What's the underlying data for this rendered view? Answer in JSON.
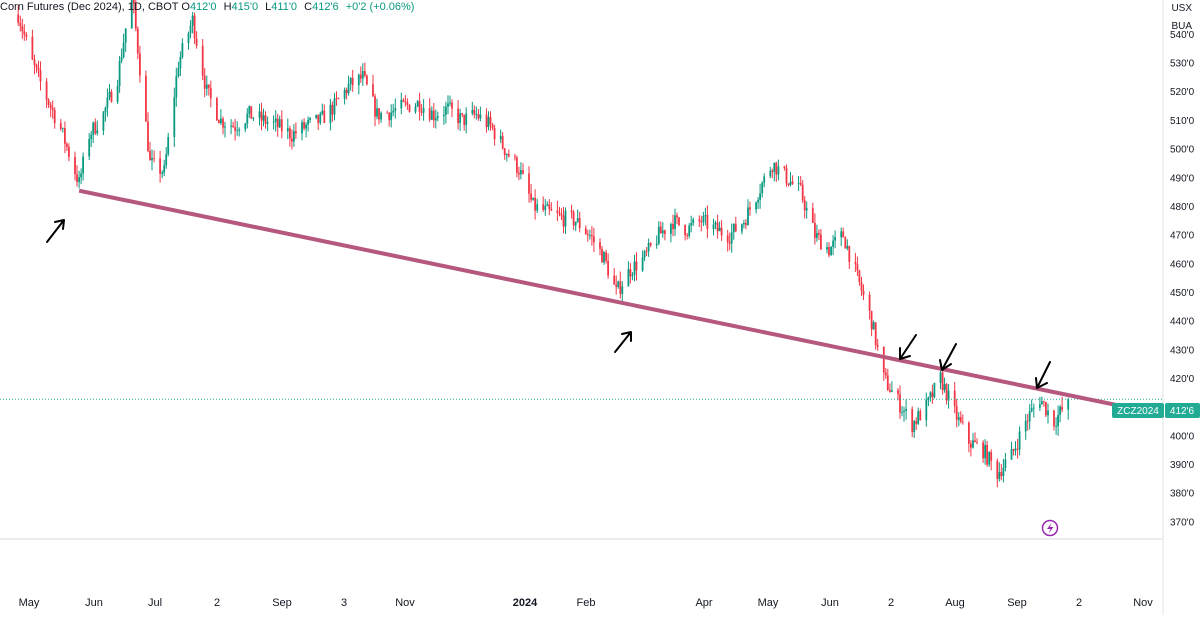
{
  "legend": {
    "symbol": "Corn Futures (Dec 2024), 1D, CBOT",
    "open_label": "O",
    "open": "412'0",
    "high_label": "H",
    "high": "415'0",
    "low_label": "L",
    "low": "411'0",
    "close_label": "C",
    "close": "412'6",
    "change": "+0'2 (+0.06%)"
  },
  "currency": "USX",
  "unit": "BUA",
  "last_price_tag": {
    "ticker": "ZCZ2024",
    "price": "412'6"
  },
  "colors": {
    "up": "#089981",
    "down": "#f23645",
    "trendline": "#b5577e",
    "label_bg": "#22ab94"
  },
  "chart_data": {
    "type": "candlestick",
    "y_axis": {
      "ylim": [
        364,
        552
      ],
      "ticks": [
        540,
        530,
        520,
        510,
        500,
        490,
        480,
        470,
        460,
        450,
        440,
        430,
        420,
        410,
        400,
        390,
        380,
        370
      ],
      "tick_labels": [
        "540'0",
        "530'0",
        "520'0",
        "510'0",
        "500'0",
        "490'0",
        "480'0",
        "470'0",
        "460'0",
        "450'0",
        "440'0",
        "430'0",
        "420'0",
        "410'0",
        "400'0",
        "390'0",
        "380'0",
        "370'0"
      ]
    },
    "x_axis": {
      "labels": [
        "May",
        "Jun",
        "Jul",
        "2",
        "Sep",
        "3",
        "Nov",
        "2024",
        "Feb",
        "Apr",
        "May",
        "Jun",
        "2",
        "Aug",
        "Sep",
        "2",
        "Nov"
      ],
      "bold": [
        "2024"
      ]
    },
    "price_path": [
      [
        "2023-05-01",
        547
      ],
      [
        "2023-05-08",
        530
      ],
      [
        "2023-05-15",
        518
      ],
      [
        "2023-05-22",
        507
      ],
      [
        "2023-05-31",
        488
      ],
      [
        "2023-06-05",
        505
      ],
      [
        "2023-06-12",
        512
      ],
      [
        "2023-06-19",
        525
      ],
      [
        "2023-06-26",
        555
      ],
      [
        "2023-07-05",
        495
      ],
      [
        "2023-07-12",
        492
      ],
      [
        "2023-07-19",
        530
      ],
      [
        "2023-07-26",
        545
      ],
      [
        "2023-08-02",
        520
      ],
      [
        "2023-08-09",
        510
      ],
      [
        "2023-08-16",
        508
      ],
      [
        "2023-08-23",
        512
      ],
      [
        "2023-08-30",
        510
      ],
      [
        "2023-09-06",
        508
      ],
      [
        "2023-09-13",
        505
      ],
      [
        "2023-09-20",
        508
      ],
      [
        "2023-09-27",
        510
      ],
      [
        "2023-10-04",
        515
      ],
      [
        "2023-10-11",
        522
      ],
      [
        "2023-10-18",
        525
      ],
      [
        "2023-10-25",
        512
      ],
      [
        "2023-11-01",
        513
      ],
      [
        "2023-11-08",
        515
      ],
      [
        "2023-11-15",
        516
      ],
      [
        "2023-11-22",
        512
      ],
      [
        "2023-11-29",
        514
      ],
      [
        "2023-12-06",
        510
      ],
      [
        "2023-12-13",
        512
      ],
      [
        "2023-12-20",
        508
      ],
      [
        "2023-12-27",
        500
      ],
      [
        "2024-01-03",
        493
      ],
      [
        "2024-01-10",
        480
      ],
      [
        "2024-01-17",
        478
      ],
      [
        "2024-01-24",
        476
      ],
      [
        "2024-01-31",
        475
      ],
      [
        "2024-02-07",
        470
      ],
      [
        "2024-02-14",
        462
      ],
      [
        "2024-02-20",
        450
      ],
      [
        "2024-02-27",
        458
      ],
      [
        "2024-03-05",
        462
      ],
      [
        "2024-03-12",
        470
      ],
      [
        "2024-03-19",
        475
      ],
      [
        "2024-03-26",
        472
      ],
      [
        "2024-04-02",
        475
      ],
      [
        "2024-04-09",
        472
      ],
      [
        "2024-04-16",
        470
      ],
      [
        "2024-04-23",
        475
      ],
      [
        "2024-04-30",
        485
      ],
      [
        "2024-05-07",
        495
      ],
      [
        "2024-05-14",
        490
      ],
      [
        "2024-05-21",
        485
      ],
      [
        "2024-05-28",
        470
      ],
      [
        "2024-06-04",
        465
      ],
      [
        "2024-06-11",
        470
      ],
      [
        "2024-06-18",
        455
      ],
      [
        "2024-06-25",
        440
      ],
      [
        "2024-07-01",
        420
      ],
      [
        "2024-07-08",
        412
      ],
      [
        "2024-07-15",
        404
      ],
      [
        "2024-07-22",
        410
      ],
      [
        "2024-07-29",
        420
      ],
      [
        "2024-08-05",
        408
      ],
      [
        "2024-08-12",
        398
      ],
      [
        "2024-08-19",
        395
      ],
      [
        "2024-08-26",
        387
      ],
      [
        "2024-09-02",
        393
      ],
      [
        "2024-09-09",
        405
      ],
      [
        "2024-09-16",
        413
      ],
      [
        "2024-09-23",
        405
      ],
      [
        "2024-09-30",
        412
      ]
    ],
    "trendline": [
      [
        "2023-05-31",
        485.5
      ],
      [
        "2024-11-08",
        408.5
      ]
    ]
  }
}
